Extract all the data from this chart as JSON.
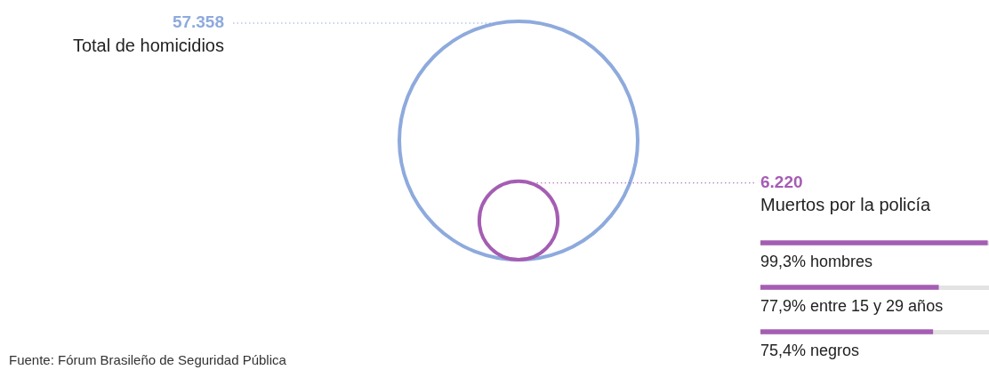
{
  "chart_data": [
    {
      "type": "other",
      "categories": [
        "Total de homicidios",
        "Muertos por la policía"
      ],
      "values": [
        57358,
        6220
      ],
      "value_labels": [
        "57.358",
        "6.220"
      ],
      "colors": [
        "#8eaadd",
        "#a55db3"
      ],
      "annotations": [
        "Fuente: Fórum Brasileño de Seguridad Pública"
      ]
    },
    {
      "type": "bar",
      "orientation": "horizontal",
      "categories": [
        "hombres",
        "entre 15 y 29 años",
        "negros"
      ],
      "tick_labels": false,
      "series": [
        {
          "color": "#a55db3",
          "values": [
            99.3,
            77.9,
            75.4
          ],
          "value_labels": [
            "99,3%",
            "77,9%",
            "75,4%"
          ]
        }
      ]
    }
  ]
}
